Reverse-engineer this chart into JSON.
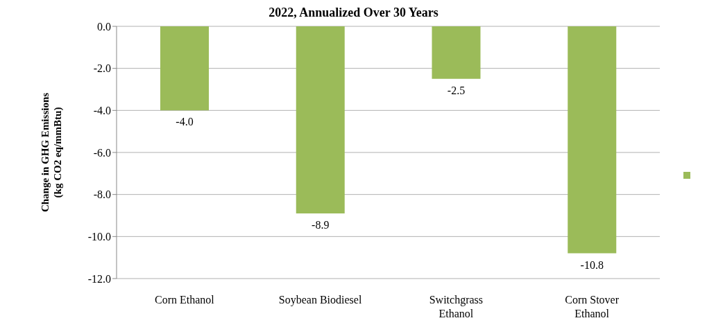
{
  "chart_data": {
    "type": "bar",
    "title": "2022, Annualized Over 30 Years",
    "ylabel": "Change in GHG Emissions (kg CO2 eq/mmBtu)",
    "categories": [
      "Corn Ethanol",
      "Soybean Biodiesel",
      "Switchgrass Ethanol",
      "Corn Stover Ethanol"
    ],
    "series": [
      {
        "color": "#9bbb59",
        "values": [
          -4.0,
          -8.9,
          -2.5,
          -10.8
        ],
        "value_labels": [
          "-4.0",
          "-8.9",
          "-2.5",
          "-10.8"
        ]
      }
    ],
    "ylim": [
      -12,
      0
    ],
    "yticks": [
      {
        "value": 0,
        "label": "0.0"
      },
      {
        "value": -2,
        "label": "-2.0"
      },
      {
        "value": -4,
        "label": "-4.0"
      },
      {
        "value": -6,
        "label": "-6.0"
      },
      {
        "value": -8,
        "label": "-8.0"
      },
      {
        "value": -10,
        "label": "-10.0"
      },
      {
        "value": -12,
        "label": "-12.0"
      }
    ],
    "grid": "y"
  }
}
